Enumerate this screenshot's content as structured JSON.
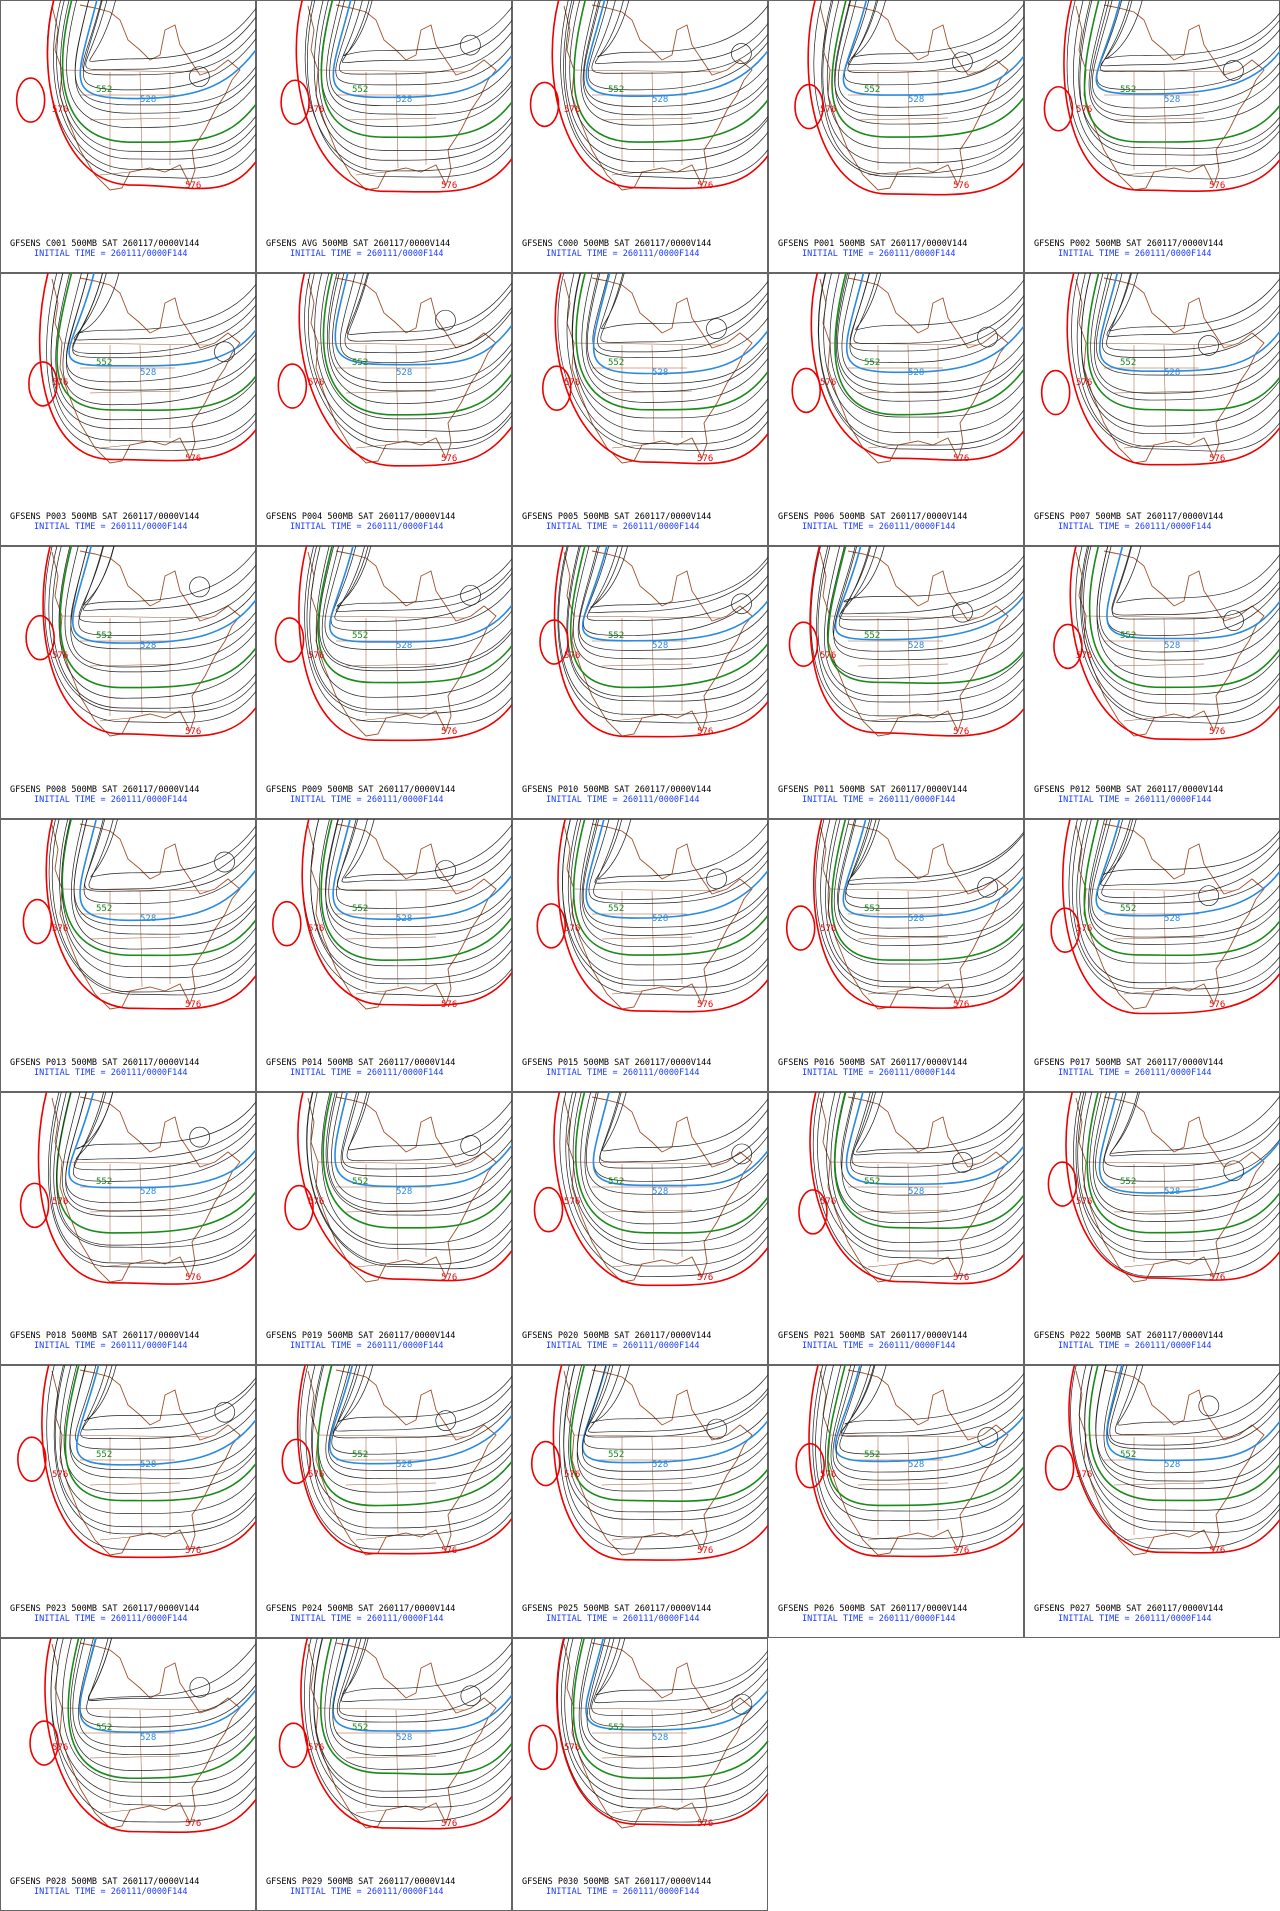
{
  "panels": [
    {
      "title": "GFSENS C001 500MB SAT 260117/0000V144",
      "initial_time": "INITIAL TIME = 260111/0000F144",
      "contour_labels": [
        "576",
        "552",
        "528",
        "576"
      ]
    },
    {
      "title": "GFSENS AVG 500MB SAT 260117/0000V144",
      "initial_time": "INITIAL TIME = 260111/0000F144",
      "contour_labels": [
        "576",
        "552",
        "528",
        "576"
      ]
    },
    {
      "title": "GFSENS C000 500MB SAT 260117/0000V144",
      "initial_time": "INITIAL TIME = 260111/0000F144",
      "contour_labels": [
        "576",
        "552",
        "528",
        "576"
      ]
    },
    {
      "title": "GFSENS P001 500MB SAT 260117/0000V144",
      "initial_time": "INITIAL TIME = 260111/0000F144",
      "contour_labels": [
        "576",
        "552",
        "528",
        "576"
      ]
    },
    {
      "title": "GFSENS P002 500MB SAT 260117/0000V144",
      "initial_time": "INITIAL TIME = 260111/0000F144",
      "contour_labels": [
        "576",
        "552",
        "528",
        "576"
      ]
    },
    {
      "title": "GFSENS P003 500MB SAT 260117/0000V144",
      "initial_time": "INITIAL TIME = 260111/0000F144",
      "contour_labels": [
        "576",
        "552",
        "528",
        "576"
      ]
    },
    {
      "title": "GFSENS P004 500MB SAT 260117/0000V144",
      "initial_time": "INITIAL TIME = 260111/0000F144",
      "contour_labels": [
        "576",
        "552",
        "528",
        "576"
      ]
    },
    {
      "title": "GFSENS P005 500MB SAT 260117/0000V144",
      "initial_time": "INITIAL TIME = 260111/0000F144",
      "contour_labels": [
        "576",
        "552",
        "528",
        "576"
      ]
    },
    {
      "title": "GFSENS P006 500MB SAT 260117/0000V144",
      "initial_time": "INITIAL TIME = 260111/0000F144",
      "contour_labels": [
        "576",
        "552",
        "528",
        "576"
      ]
    },
    {
      "title": "GFSENS P007 500MB SAT 260117/0000V144",
      "initial_time": "INITIAL TIME = 260111/0000F144",
      "contour_labels": [
        "576",
        "552",
        "528",
        "576"
      ]
    },
    {
      "title": "GFSENS P008 500MB SAT 260117/0000V144",
      "initial_time": "INITIAL TIME = 260111/0000F144",
      "contour_labels": [
        "576",
        "552",
        "528",
        "576"
      ]
    },
    {
      "title": "GFSENS P009 500MB SAT 260117/0000V144",
      "initial_time": "INITIAL TIME = 260111/0000F144",
      "contour_labels": [
        "576",
        "552",
        "528",
        "576"
      ]
    },
    {
      "title": "GFSENS P010 500MB SAT 260117/0000V144",
      "initial_time": "INITIAL TIME = 260111/0000F144",
      "contour_labels": [
        "576",
        "552",
        "528",
        "576"
      ]
    },
    {
      "title": "GFSENS P011 500MB SAT 260117/0000V144",
      "initial_time": "INITIAL TIME = 260111/0000F144",
      "contour_labels": [
        "576",
        "552",
        "528",
        "576"
      ]
    },
    {
      "title": "GFSENS P012 500MB SAT 260117/0000V144",
      "initial_time": "INITIAL TIME = 260111/0000F144",
      "contour_labels": [
        "576",
        "552",
        "528",
        "576"
      ]
    },
    {
      "title": "GFSENS P013 500MB SAT 260117/0000V144",
      "initial_time": "INITIAL TIME = 260111/0000F144",
      "contour_labels": [
        "576",
        "552",
        "528",
        "576"
      ]
    },
    {
      "title": "GFSENS P014 500MB SAT 260117/0000V144",
      "initial_time": "INITIAL TIME = 260111/0000F144",
      "contour_labels": [
        "576",
        "552",
        "528",
        "576"
      ]
    },
    {
      "title": "GFSENS P015 500MB SAT 260117/0000V144",
      "initial_time": "INITIAL TIME = 260111/0000F144",
      "contour_labels": [
        "576",
        "552",
        "528",
        "576"
      ]
    },
    {
      "title": "GFSENS P016 500MB SAT 260117/0000V144",
      "initial_time": "INITIAL TIME = 260111/0000F144",
      "contour_labels": [
        "576",
        "552",
        "528",
        "576"
      ]
    },
    {
      "title": "GFSENS P017 500MB SAT 260117/0000V144",
      "initial_time": "INITIAL TIME = 260111/0000F144",
      "contour_labels": [
        "576",
        "552",
        "528",
        "576"
      ]
    },
    {
      "title": "GFSENS P018 500MB SAT 260117/0000V144",
      "initial_time": "INITIAL TIME = 260111/0000F144",
      "contour_labels": [
        "576",
        "552",
        "528",
        "576"
      ]
    },
    {
      "title": "GFSENS P019 500MB SAT 260117/0000V144",
      "initial_time": "INITIAL TIME = 260111/0000F144",
      "contour_labels": [
        "576",
        "552",
        "528",
        "576"
      ]
    },
    {
      "title": "GFSENS P020 500MB SAT 260117/0000V144",
      "initial_time": "INITIAL TIME = 260111/0000F144",
      "contour_labels": [
        "576",
        "552",
        "528",
        "576"
      ]
    },
    {
      "title": "GFSENS P021 500MB SAT 260117/0000V144",
      "initial_time": "INITIAL TIME = 260111/0000F144",
      "contour_labels": [
        "576",
        "552",
        "528",
        "576"
      ]
    },
    {
      "title": "GFSENS P022 500MB SAT 260117/0000V144",
      "initial_time": "INITIAL TIME = 260111/0000F144",
      "contour_labels": [
        "576",
        "552",
        "528",
        "576"
      ]
    },
    {
      "title": "GFSENS P023 500MB SAT 260117/0000V144",
      "initial_time": "INITIAL TIME = 260111/0000F144",
      "contour_labels": [
        "576",
        "552",
        "528",
        "576"
      ]
    },
    {
      "title": "GFSENS P024 500MB SAT 260117/0000V144",
      "initial_time": "INITIAL TIME = 260111/0000F144",
      "contour_labels": [
        "576",
        "552",
        "528",
        "576"
      ]
    },
    {
      "title": "GFSENS P025 500MB SAT 260117/0000V144",
      "initial_time": "INITIAL TIME = 260111/0000F144",
      "contour_labels": [
        "576",
        "552",
        "528",
        "576"
      ]
    },
    {
      "title": "GFSENS P026 500MB SAT 260117/0000V144",
      "initial_time": "INITIAL TIME = 260111/0000F144",
      "contour_labels": [
        "576",
        "552",
        "528",
        "576"
      ]
    },
    {
      "title": "GFSENS P027 500MB SAT 260117/0000V144",
      "initial_time": "INITIAL TIME = 260111/0000F144",
      "contour_labels": [
        "576",
        "552",
        "528",
        "576"
      ]
    },
    {
      "title": "GFSENS P028 500MB SAT 260117/0000V144",
      "initial_time": "INITIAL TIME = 260111/0000F144",
      "contour_labels": [
        "576",
        "552",
        "528",
        "576"
      ]
    },
    {
      "title": "GFSENS P029 500MB SAT 260117/0000V144",
      "initial_time": "INITIAL TIME = 260111/0000F144",
      "contour_labels": [
        "576",
        "552",
        "528",
        "576"
      ]
    },
    {
      "title": "GFSENS P030 500MB SAT 260117/0000V144",
      "initial_time": "INITIAL TIME = 260111/0000F144",
      "contour_labels": [
        "576",
        "552",
        "528",
        "576"
      ]
    }
  ]
}
